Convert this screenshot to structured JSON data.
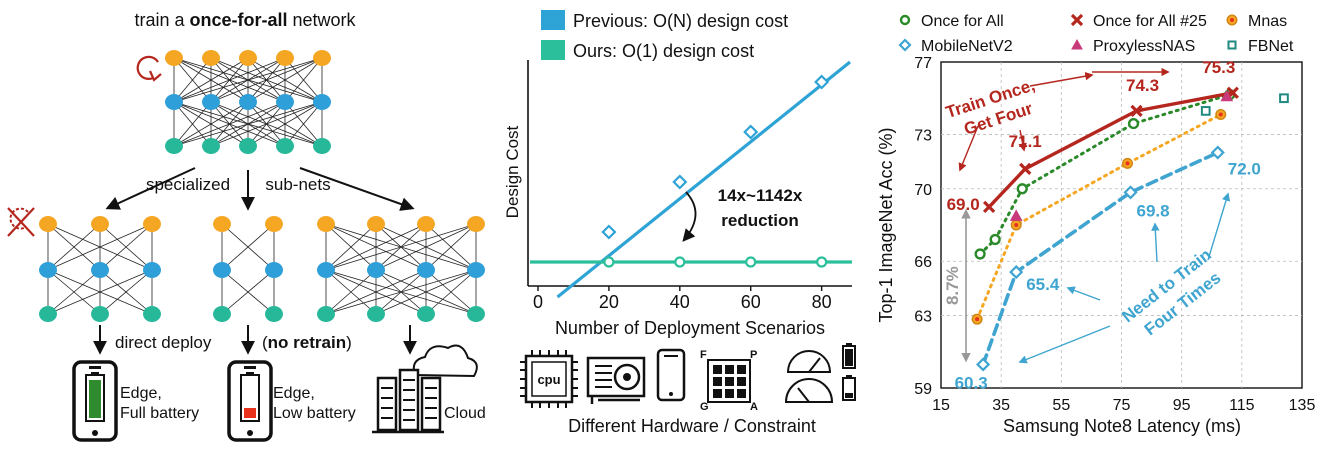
{
  "panel_a": {
    "title_prefix": "train a ",
    "title_bold": "once-for-all",
    "title_suffix": " network",
    "specialized_1": "specialized",
    "specialized_2": "sub-nets",
    "deploy_1": "direct deploy",
    "deploy_2": "(",
    "deploy_bold": "no retrain",
    "deploy_3": ")",
    "edge_full_1": "Edge,",
    "edge_full_2": "Full battery",
    "edge_low_1": "Edge,",
    "edge_low_2": "Low battery",
    "cloud": "Cloud",
    "colors": {
      "orange": "#f5a623",
      "blue": "#2e9fd8",
      "green": "#27b89a",
      "battery_full": "#2e8b2e",
      "battery_low": "#e8321e"
    }
  },
  "panel_b": {
    "legend_previous": "Previous: O(N) design cost",
    "legend_ours": "Ours: O(1) design cost",
    "reduction_1": "14x~1142x",
    "reduction_2": "reduction",
    "hardware_label": "Different Hardware / Constraint",
    "cpu_label": "cpu",
    "fpga_letters": [
      "F",
      "P",
      "G",
      "A"
    ],
    "colors": {
      "previous": "#2ea3d5",
      "ours": "#2cbf9b"
    }
  },
  "chart_data": [
    {
      "type": "line",
      "title": "",
      "xlabel": "Number of Deployment Scenarios",
      "ylabel": "Design Cost",
      "x_ticks": [
        0,
        20,
        40,
        60,
        80
      ],
      "xlim": [
        0,
        88
      ],
      "series": [
        {
          "name": "Previous: O(N) design cost",
          "x": [
            20,
            40,
            60,
            80
          ],
          "y": [
            20,
            40,
            60,
            80
          ],
          "color": "#2ea3d5"
        },
        {
          "name": "Ours: O(1) design cost",
          "x": [
            20,
            40,
            60,
            80
          ],
          "y": [
            8,
            8,
            8,
            8
          ],
          "color": "#2cbf9b"
        }
      ],
      "annotation": "14x~1142x reduction"
    },
    {
      "type": "scatter",
      "title": "",
      "xlabel": "Samsung Note8 Latency (ms)",
      "ylabel": "Top-1 ImageNet Acc (%)",
      "xlim": [
        15,
        135
      ],
      "ylim": [
        59,
        77
      ],
      "x_ticks": [
        15,
        35,
        55,
        75,
        95,
        115,
        135
      ],
      "y_ticks": [
        59,
        63,
        66,
        70,
        73,
        77
      ],
      "legend_position": "top",
      "series": [
        {
          "name": "Once for All",
          "marker": "circle",
          "color": "#2a8a2a",
          "line": "dotted",
          "x": [
            28,
            33,
            42,
            79,
            111
          ],
          "y": [
            66.4,
            67.2,
            70.0,
            73.6,
            75.2
          ]
        },
        {
          "name": "Once for All #25",
          "marker": "x",
          "color": "#b5261e",
          "line": "solid",
          "x": [
            31,
            43,
            80,
            112
          ],
          "y": [
            69.0,
            71.1,
            74.3,
            75.3
          ]
        },
        {
          "name": "Mnas",
          "marker": "circle",
          "color": "#f5a623",
          "line": "dotted",
          "x": [
            27,
            40,
            77,
            108
          ],
          "y": [
            62.8,
            68.0,
            71.4,
            74.1
          ]
        },
        {
          "name": "MobileNetV2",
          "marker": "diamond",
          "color": "#3fa5d0",
          "line": "dashed",
          "x": [
            29,
            40,
            78,
            107
          ],
          "y": [
            60.3,
            65.4,
            69.8,
            72.0
          ]
        },
        {
          "name": "ProxylessNAS",
          "marker": "triangle",
          "color": "#c93a7a",
          "line": "none",
          "x": [
            40,
            110
          ],
          "y": [
            68.5,
            75.1
          ]
        },
        {
          "name": "FBNet",
          "marker": "square",
          "color": "#1f8a80",
          "line": "none",
          "x": [
            103,
            129
          ],
          "y": [
            74.3,
            75.0
          ]
        }
      ],
      "value_labels": [
        {
          "text": "69.0",
          "x": 31,
          "y": 69.0,
          "color": "#b5261e"
        },
        {
          "text": "71.1",
          "x": 43,
          "y": 71.1,
          "color": "#b5261e"
        },
        {
          "text": "74.3",
          "x": 80,
          "y": 74.3,
          "color": "#b5261e"
        },
        {
          "text": "75.3",
          "x": 112,
          "y": 75.3,
          "color": "#b5261e"
        },
        {
          "text": "60.3",
          "x": 29,
          "y": 60.3,
          "color": "#3fa5d0"
        },
        {
          "text": "65.4",
          "x": 40,
          "y": 65.4,
          "color": "#3fa5d0"
        },
        {
          "text": "69.8",
          "x": 78,
          "y": 69.8,
          "color": "#3fa5d0"
        },
        {
          "text": "72.0",
          "x": 107,
          "y": 72.0,
          "color": "#3fa5d0"
        }
      ],
      "annotations": {
        "train_once_1": "Train Once,",
        "train_once_2": "Get Four",
        "need_train_1": "Need to Train",
        "need_train_2": "Four Times",
        "gap": "8.7%",
        "gap_from": 60.3,
        "gap_to": 69.0
      }
    }
  ]
}
